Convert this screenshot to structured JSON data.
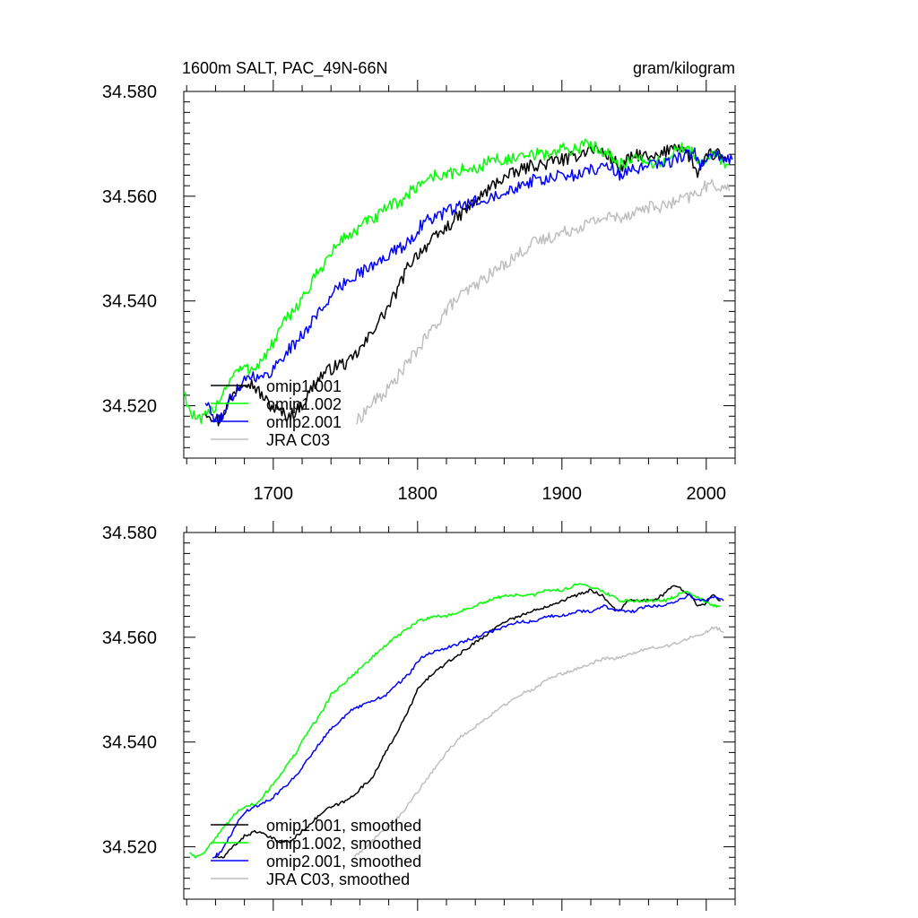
{
  "figure": {
    "top_title_left": "1600m SALT, PAC_49N-66N",
    "top_title_right": "gram/kilogram"
  },
  "colors": {
    "omip1_001": "#000000",
    "omip1_002": "#00ff00",
    "omip2_001": "#0000ff",
    "jra_c03": "#bfbfbf"
  },
  "chart_data": [
    {
      "type": "line",
      "name": "raw",
      "xlim": [
        1638,
        2020
      ],
      "ylim": [
        34.51,
        34.58
      ],
      "x_ticks": [
        1700,
        1800,
        1900,
        2000
      ],
      "x_tick_labels": [
        "1700",
        "1800",
        "1900",
        "2000"
      ],
      "y_ticks": [
        34.52,
        34.54,
        34.56,
        34.58
      ],
      "y_tick_labels": [
        "34.520",
        "34.540",
        "34.560",
        "34.580"
      ],
      "legend": [
        "omip1.001",
        "omip1.002",
        "omip2.001",
        "JRA C03"
      ],
      "series": [
        {
          "name": "omip1.001",
          "color": "#000000",
          "noise": 0.0012,
          "x": [
            1653,
            1658,
            1662,
            1668,
            1674,
            1680,
            1686,
            1692,
            1698,
            1704,
            1710,
            1716,
            1722,
            1728,
            1734,
            1740,
            1746,
            1752,
            1758,
            1764,
            1770,
            1778,
            1786,
            1794,
            1800,
            1808,
            1816,
            1824,
            1832,
            1840,
            1848,
            1856,
            1864,
            1872,
            1880,
            1888,
            1896,
            1904,
            1912,
            1918,
            1924,
            1930,
            1936,
            1940,
            1946,
            1954,
            1962,
            1970,
            1978,
            1984,
            1990,
            1994,
            1998,
            2002,
            2008,
            2014
          ],
          "y": [
            34.519,
            34.518,
            34.517,
            34.52,
            34.523,
            34.525,
            34.524,
            34.522,
            34.52,
            34.519,
            34.518,
            34.519,
            34.521,
            34.524,
            34.526,
            34.527,
            34.528,
            34.528,
            34.53,
            34.532,
            34.535,
            34.538,
            34.542,
            34.547,
            34.549,
            34.551,
            34.553,
            34.555,
            34.557,
            34.559,
            34.561,
            34.563,
            34.564,
            34.565,
            34.566,
            34.566,
            34.567,
            34.567,
            34.568,
            34.569,
            34.569,
            34.568,
            34.567,
            34.565,
            34.567,
            34.568,
            34.567,
            34.568,
            34.57,
            34.569,
            34.567,
            34.564,
            34.566,
            34.568,
            34.568,
            34.567
          ]
        },
        {
          "name": "omip1.002",
          "color": "#00ff00",
          "noise": 0.0012,
          "x": [
            1638,
            1642,
            1648,
            1654,
            1660,
            1666,
            1672,
            1678,
            1684,
            1690,
            1696,
            1702,
            1708,
            1716,
            1724,
            1732,
            1740,
            1748,
            1756,
            1764,
            1772,
            1780,
            1788,
            1796,
            1804,
            1812,
            1820,
            1830,
            1840,
            1850,
            1860,
            1870,
            1880,
            1890,
            1900,
            1910,
            1918,
            1926,
            1934,
            1940,
            1948,
            1956,
            1964,
            1972,
            1980,
            1986,
            1992,
            1998,
            2004,
            2010,
            2016
          ],
          "y": [
            34.523,
            34.519,
            34.517,
            34.518,
            34.52,
            34.523,
            34.526,
            34.527,
            34.527,
            34.528,
            34.53,
            34.533,
            34.536,
            34.539,
            34.542,
            34.546,
            34.549,
            34.552,
            34.553,
            34.555,
            34.556,
            34.558,
            34.559,
            34.561,
            34.563,
            34.564,
            34.564,
            34.565,
            34.565,
            34.567,
            34.567,
            34.567,
            34.568,
            34.568,
            34.569,
            34.569,
            34.57,
            34.569,
            34.568,
            34.566,
            34.567,
            34.567,
            34.566,
            34.567,
            34.569,
            34.569,
            34.568,
            34.566,
            34.568,
            34.567,
            34.566
          ]
        },
        {
          "name": "omip2.001",
          "color": "#0000ff",
          "noise": 0.0012,
          "x": [
            1653,
            1658,
            1662,
            1668,
            1674,
            1680,
            1686,
            1692,
            1700,
            1708,
            1716,
            1724,
            1732,
            1740,
            1748,
            1756,
            1764,
            1772,
            1780,
            1788,
            1796,
            1804,
            1812,
            1820,
            1830,
            1840,
            1850,
            1860,
            1870,
            1880,
            1890,
            1900,
            1910,
            1920,
            1930,
            1936,
            1940,
            1946,
            1954,
            1962,
            1970,
            1978,
            1986,
            1992,
            1996,
            2000,
            2006,
            2012,
            2018
          ],
          "y": [
            34.521,
            34.518,
            34.517,
            34.52,
            34.523,
            34.525,
            34.526,
            34.525,
            34.527,
            34.53,
            34.532,
            34.535,
            34.538,
            34.541,
            34.543,
            34.545,
            34.546,
            34.547,
            34.549,
            34.55,
            34.552,
            34.555,
            34.556,
            34.557,
            34.558,
            34.559,
            34.56,
            34.561,
            34.562,
            34.563,
            34.563,
            34.564,
            34.564,
            34.565,
            34.566,
            34.565,
            34.564,
            34.565,
            34.565,
            34.566,
            34.566,
            34.567,
            34.568,
            34.568,
            34.566,
            34.567,
            34.568,
            34.567,
            34.567
          ]
        },
        {
          "name": "JRA C03",
          "color": "#bfbfbf",
          "noise": 0.0012,
          "x": [
            1758,
            1764,
            1770,
            1776,
            1782,
            1790,
            1798,
            1806,
            1814,
            1822,
            1830,
            1840,
            1850,
            1860,
            1870,
            1880,
            1890,
            1900,
            1910,
            1920,
            1930,
            1940,
            1950,
            1960,
            1970,
            1980,
            1990,
            1996,
            2000,
            2006,
            2010,
            2016
          ],
          "y": [
            34.517,
            34.519,
            34.521,
            34.522,
            34.524,
            34.527,
            34.53,
            34.533,
            34.536,
            34.539,
            34.541,
            34.543,
            34.545,
            34.547,
            34.549,
            34.551,
            34.552,
            34.553,
            34.554,
            34.555,
            34.556,
            34.556,
            34.557,
            34.558,
            34.558,
            34.559,
            34.56,
            34.561,
            34.562,
            34.562,
            34.562,
            34.561
          ]
        }
      ]
    },
    {
      "type": "line",
      "name": "smoothed",
      "xlim": [
        1638,
        2020
      ],
      "ylim": [
        34.51,
        34.58
      ],
      "x_ticks": [
        1700,
        1800,
        1900,
        2000
      ],
      "x_tick_labels": [],
      "y_ticks": [
        34.52,
        34.54,
        34.56,
        34.58
      ],
      "y_tick_labels": [
        "34.520",
        "34.540",
        "34.560",
        "34.580"
      ],
      "legend": [
        "omip1.001, smoothed",
        "omip1.002, smoothed",
        "omip2.001, smoothed",
        "JRA C03, smoothed"
      ],
      "series": [
        {
          "name": "omip1.001, smoothed",
          "color": "#000000",
          "noise": 0.0003,
          "x": [
            1660,
            1666,
            1672,
            1680,
            1688,
            1696,
            1704,
            1712,
            1720,
            1728,
            1736,
            1744,
            1752,
            1760,
            1768,
            1776,
            1784,
            1792,
            1800,
            1810,
            1820,
            1830,
            1840,
            1850,
            1860,
            1870,
            1880,
            1890,
            1900,
            1910,
            1920,
            1928,
            1934,
            1940,
            1946,
            1954,
            1962,
            1970,
            1978,
            1984,
            1990,
            1994,
            1998,
            2004,
            2010
          ],
          "y": [
            34.518,
            34.518,
            34.52,
            34.522,
            34.523,
            34.522,
            34.521,
            34.521,
            34.523,
            34.525,
            34.527,
            34.528,
            34.529,
            34.531,
            34.533,
            34.537,
            34.541,
            34.545,
            34.55,
            34.553,
            34.555,
            34.557,
            34.559,
            34.561,
            34.563,
            34.564,
            34.565,
            34.566,
            34.567,
            34.568,
            34.569,
            34.568,
            34.566,
            34.565,
            34.567,
            34.567,
            34.567,
            34.568,
            34.57,
            34.569,
            34.568,
            34.566,
            34.566,
            34.568,
            34.567
          ]
        },
        {
          "name": "omip1.002, smoothed",
          "color": "#00ff00",
          "noise": 0.0003,
          "x": [
            1642,
            1646,
            1652,
            1658,
            1664,
            1670,
            1676,
            1682,
            1688,
            1694,
            1700,
            1708,
            1716,
            1724,
            1732,
            1740,
            1748,
            1756,
            1764,
            1772,
            1780,
            1790,
            1800,
            1810,
            1820,
            1830,
            1840,
            1850,
            1860,
            1870,
            1880,
            1890,
            1900,
            1910,
            1918,
            1926,
            1934,
            1940,
            1948,
            1956,
            1964,
            1972,
            1980,
            1986,
            1992,
            1998,
            2004,
            2010
          ],
          "y": [
            34.519,
            34.518,
            34.519,
            34.521,
            34.523,
            34.525,
            34.527,
            34.528,
            34.528,
            34.53,
            34.532,
            34.535,
            34.538,
            34.542,
            34.545,
            34.549,
            34.551,
            34.553,
            34.555,
            34.557,
            34.559,
            34.561,
            34.563,
            34.564,
            34.564,
            34.565,
            34.566,
            34.567,
            34.568,
            34.568,
            34.568,
            34.569,
            34.569,
            34.57,
            34.57,
            34.569,
            34.568,
            34.567,
            34.567,
            34.567,
            34.567,
            34.567,
            34.568,
            34.569,
            34.568,
            34.567,
            34.566,
            34.566
          ]
        },
        {
          "name": "omip2.001, smoothed",
          "color": "#0000ff",
          "noise": 0.0003,
          "x": [
            1658,
            1664,
            1670,
            1676,
            1682,
            1690,
            1698,
            1706,
            1714,
            1722,
            1730,
            1738,
            1746,
            1754,
            1762,
            1770,
            1778,
            1786,
            1794,
            1802,
            1810,
            1820,
            1830,
            1840,
            1850,
            1860,
            1870,
            1880,
            1890,
            1900,
            1910,
            1920,
            1930,
            1936,
            1942,
            1950,
            1960,
            1970,
            1980,
            1988,
            1994,
            2000,
            2006,
            2012
          ],
          "y": [
            34.518,
            34.519,
            34.522,
            34.525,
            34.527,
            34.528,
            34.529,
            34.531,
            34.533,
            34.536,
            34.539,
            34.542,
            34.544,
            34.546,
            34.547,
            34.548,
            34.549,
            34.551,
            34.553,
            34.556,
            34.557,
            34.558,
            34.559,
            34.56,
            34.561,
            34.562,
            34.563,
            34.563,
            34.564,
            34.564,
            34.565,
            34.565,
            34.566,
            34.565,
            34.565,
            34.565,
            34.566,
            34.566,
            34.567,
            34.568,
            34.567,
            34.567,
            34.568,
            34.567
          ]
        },
        {
          "name": "JRA C03, smoothed",
          "color": "#bfbfbf",
          "noise": 0.0003,
          "x": [
            1756,
            1764,
            1772,
            1780,
            1788,
            1796,
            1804,
            1812,
            1820,
            1830,
            1840,
            1850,
            1860,
            1870,
            1880,
            1890,
            1900,
            1910,
            1920,
            1930,
            1940,
            1950,
            1960,
            1970,
            1980,
            1990,
            2000,
            2006,
            2012
          ],
          "y": [
            34.518,
            34.52,
            34.522,
            34.524,
            34.526,
            34.529,
            34.532,
            34.535,
            34.538,
            34.541,
            34.543,
            34.545,
            34.547,
            34.549,
            34.55,
            34.552,
            34.553,
            34.554,
            34.555,
            34.556,
            34.556,
            34.557,
            34.558,
            34.558,
            34.559,
            34.56,
            34.561,
            34.562,
            34.561
          ]
        }
      ]
    }
  ]
}
